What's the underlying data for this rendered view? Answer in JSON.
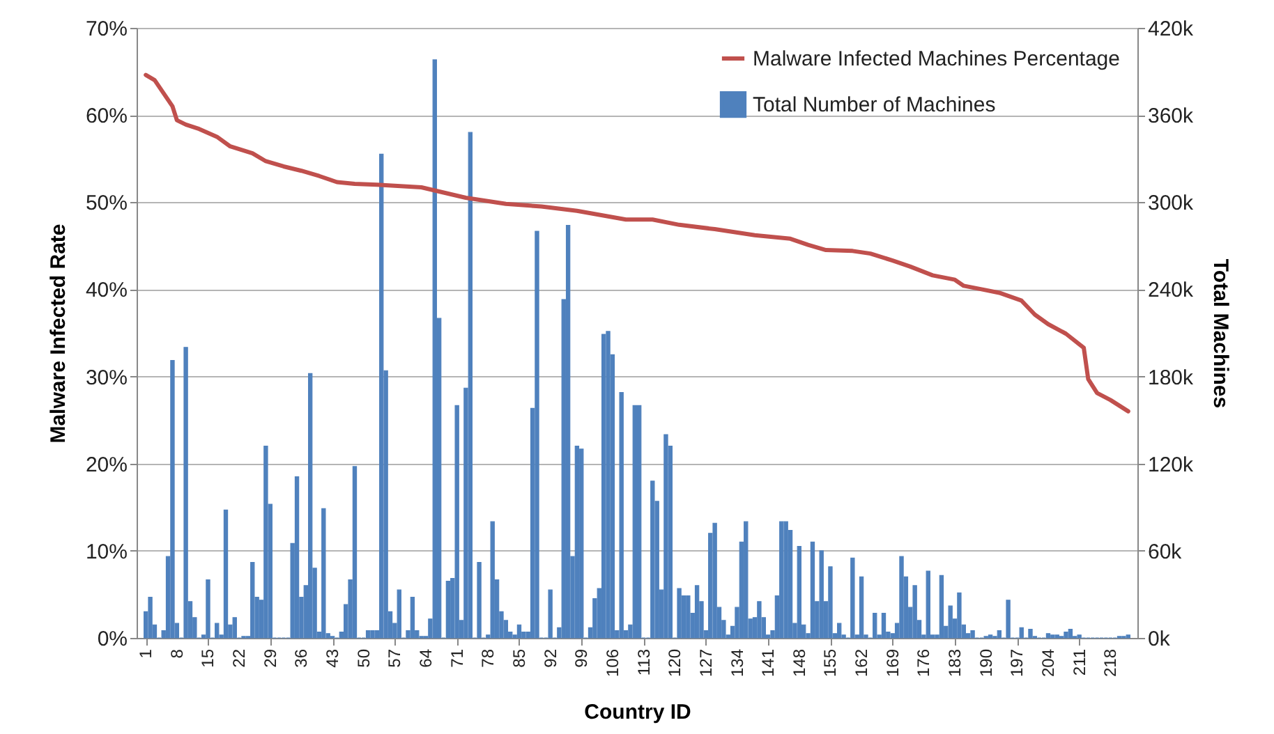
{
  "chart_data": {
    "type": "bar",
    "xlabel": "Country ID",
    "ylabel": "Malware Infected Rate",
    "y2label": "Total Machines",
    "x": [
      1,
      2,
      3,
      4,
      5,
      6,
      7,
      8,
      9,
      10,
      11,
      12,
      13,
      14,
      15,
      16,
      17,
      18,
      19,
      20,
      21,
      22,
      23,
      24,
      25,
      26,
      27,
      28,
      29,
      30,
      31,
      32,
      33,
      34,
      35,
      36,
      37,
      38,
      39,
      40,
      41,
      42,
      43,
      44,
      45,
      46,
      47,
      48,
      49,
      50,
      51,
      52,
      53,
      54,
      55,
      56,
      57,
      58,
      59,
      60,
      61,
      62,
      63,
      64,
      65,
      66,
      67,
      68,
      69,
      70,
      71,
      72,
      73,
      74,
      75,
      76,
      77,
      78,
      79,
      80,
      81,
      82,
      83,
      84,
      85,
      86,
      87,
      88,
      89,
      90,
      91,
      92,
      93,
      94,
      95,
      96,
      97,
      98,
      99,
      100,
      101,
      102,
      103,
      104,
      105,
      106,
      107,
      108,
      109,
      110,
      111,
      112,
      113,
      114,
      115,
      116,
      117,
      118,
      119,
      120,
      121,
      122,
      123,
      124,
      125,
      126,
      127,
      128,
      129,
      130,
      131,
      132,
      133,
      134,
      135,
      136,
      137,
      138,
      139,
      140,
      141,
      142,
      143,
      144,
      145,
      146,
      147,
      148,
      149,
      150,
      151,
      152,
      153,
      154,
      155,
      156,
      157,
      158,
      159,
      160,
      161,
      162,
      163,
      164,
      165,
      166,
      167,
      168,
      169,
      170,
      171,
      172,
      173,
      174,
      175,
      176,
      177,
      178,
      179,
      180,
      181,
      182,
      183,
      184,
      185,
      186,
      187,
      188,
      189,
      190,
      191,
      192,
      193,
      194,
      195,
      196,
      197,
      198,
      199,
      200,
      201,
      202,
      203,
      204,
      205,
      206,
      207,
      208,
      209,
      210,
      211,
      212,
      213,
      214,
      215,
      216,
      217,
      218,
      219,
      220,
      221,
      222
    ],
    "xlim": [
      0.5,
      222.5
    ],
    "xticks": [
      1,
      8,
      15,
      22,
      29,
      36,
      43,
      50,
      57,
      64,
      71,
      78,
      85,
      92,
      99,
      106,
      113,
      120,
      127,
      134,
      141,
      148,
      155,
      162,
      169,
      176,
      183,
      190,
      197,
      204,
      211,
      218
    ],
    "ylim": [
      0,
      70
    ],
    "yticks": [
      {
        "value": 0,
        "label": "0%"
      },
      {
        "value": 10,
        "label": "10%"
      },
      {
        "value": 20,
        "label": "20%"
      },
      {
        "value": 30,
        "label": "30%"
      },
      {
        "value": 40,
        "label": "40%"
      },
      {
        "value": 50,
        "label": "50%"
      },
      {
        "value": 60,
        "label": "60%"
      },
      {
        "value": 70,
        "label": "70%"
      }
    ],
    "y2lim": [
      0,
      420
    ],
    "y2ticks": [
      {
        "value": 0,
        "label": "0k"
      },
      {
        "value": 60,
        "label": "60k"
      },
      {
        "value": 120,
        "label": "120k"
      },
      {
        "value": 180,
        "label": "180k"
      },
      {
        "value": 240,
        "label": "240k"
      },
      {
        "value": 300,
        "label": "300k"
      },
      {
        "value": 360,
        "label": "360k"
      },
      {
        "value": 420,
        "label": "420k"
      }
    ],
    "grid": "y",
    "legend": "top right",
    "series": [
      {
        "name": "Malware Infected Machines Percentage",
        "type": "line",
        "color": "#c0504d",
        "x": [
          1,
          3,
          5,
          7,
          8,
          10,
          13,
          17,
          20,
          25,
          28,
          32,
          36,
          40,
          44,
          48,
          53,
          63,
          73,
          82,
          90,
          98,
          109,
          115,
          121,
          129,
          138,
          146,
          150,
          154,
          160,
          164,
          169,
          173,
          178,
          183,
          185,
          189,
          193,
          198,
          201,
          204,
          208,
          211,
          212,
          213,
          215,
          218,
          222
        ],
        "values": [
          64.6,
          64.0,
          62.5,
          61.0,
          59.4,
          58.9,
          58.4,
          57.5,
          56.4,
          55.6,
          54.7,
          54.1,
          53.6,
          53.0,
          52.3,
          52.1,
          52.0,
          51.7,
          50.5,
          49.8,
          49.5,
          49.0,
          48.0,
          48.0,
          47.4,
          46.9,
          46.2,
          45.8,
          45.1,
          44.5,
          44.4,
          44.1,
          43.3,
          42.6,
          41.6,
          41.1,
          40.4,
          40.0,
          39.6,
          38.7,
          37.1,
          36.0,
          34.9,
          33.7,
          33.3,
          29.7,
          28.1,
          27.3,
          26.0
        ]
      },
      {
        "name": "Total Number of Machines",
        "type": "bar",
        "axis": "y2",
        "color": "#4f81bd",
        "values": [
          18,
          28,
          9,
          0,
          5,
          56,
          191,
          10,
          0,
          200,
          25,
          14,
          0,
          2,
          40,
          0,
          10,
          2,
          88,
          9,
          14,
          0,
          1,
          1,
          52,
          28,
          26,
          132,
          92,
          0,
          0,
          0,
          0,
          65,
          111,
          28,
          36,
          182,
          48,
          4,
          89,
          3,
          1,
          0,
          4,
          23,
          40,
          118,
          0,
          0,
          5,
          5,
          5,
          333,
          184,
          18,
          10,
          33,
          0,
          5,
          28,
          5,
          1,
          1,
          13,
          398,
          220,
          0,
          39,
          41,
          160,
          12,
          172,
          348,
          0,
          52,
          0,
          2,
          80,
          40,
          18,
          12,
          4,
          2,
          9,
          4,
          4,
          158,
          280,
          0,
          0,
          33,
          0,
          7,
          233,
          284,
          56,
          132,
          130,
          0,
          7,
          27,
          34,
          209,
          211,
          195,
          5,
          169,
          5,
          9,
          160,
          160,
          0,
          0,
          108,
          94,
          33,
          140,
          132,
          0,
          34,
          29,
          29,
          17,
          36,
          25,
          5,
          72,
          79,
          21,
          12,
          2,
          8,
          21,
          66,
          80,
          13,
          14,
          25,
          14,
          2,
          5,
          29,
          80,
          80,
          74,
          10,
          63,
          9,
          3,
          66,
          25,
          60,
          25,
          49,
          3,
          10,
          2,
          0,
          55,
          2,
          42,
          2,
          0,
          17,
          2,
          17,
          4,
          3,
          10,
          56,
          42,
          21,
          36,
          12,
          2,
          46,
          2,
          2,
          43,
          8,
          22,
          13,
          31,
          9,
          3,
          5,
          0,
          0,
          1,
          2,
          1,
          5,
          0,
          26,
          0,
          0,
          7,
          0,
          6,
          1,
          0,
          0,
          3,
          2,
          2,
          1,
          4,
          6,
          1,
          2,
          0,
          0,
          0,
          0,
          0,
          0,
          0,
          0,
          1,
          1,
          2
        ]
      }
    ]
  }
}
